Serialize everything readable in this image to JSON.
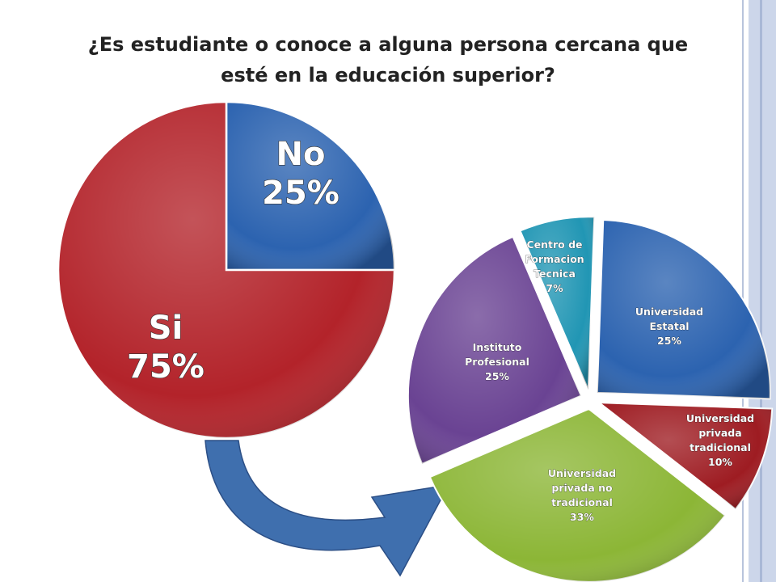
{
  "slide": {
    "title_line1": "¿Es estudiante o conoce a alguna persona cercana que",
    "title_line2": "esté en la educación superior?"
  },
  "colors": {
    "blue": "#2c63b0",
    "red": "#b3232a",
    "purple": "#6a4393",
    "teal": "#2196b4",
    "green": "#8cb636",
    "dark_red": "#9e1c22",
    "arrow": "#3f6fae"
  },
  "chart_data": [
    {
      "type": "pie",
      "title": "",
      "slices": [
        {
          "label": "No",
          "value": 25,
          "value_label": "25%",
          "color": "#2c63b0"
        },
        {
          "label": "Si",
          "value": 75,
          "value_label": "75%",
          "color": "#b3232a"
        }
      ]
    },
    {
      "type": "pie",
      "title": "",
      "slices": [
        {
          "label_lines": [
            "Universidad",
            "Estatal"
          ],
          "value": 25,
          "value_label": "25%",
          "color": "#2c63b0"
        },
        {
          "label_lines": [
            "Universidad",
            "privada",
            "tradicional"
          ],
          "value": 10,
          "value_label": "10%",
          "color": "#9e1c22"
        },
        {
          "label_lines": [
            "Universidad",
            "privada no",
            "tradicional"
          ],
          "value": 33,
          "value_label": "33%",
          "color": "#8cb636"
        },
        {
          "label_lines": [
            "Instituto",
            "Profesional"
          ],
          "value": 25,
          "value_label": "25%",
          "color": "#6a4393"
        },
        {
          "label_lines": [
            "Centro de",
            "Formacion",
            "Tecnica"
          ],
          "value": 7,
          "value_label": "7%",
          "color": "#2196b4"
        }
      ]
    }
  ]
}
